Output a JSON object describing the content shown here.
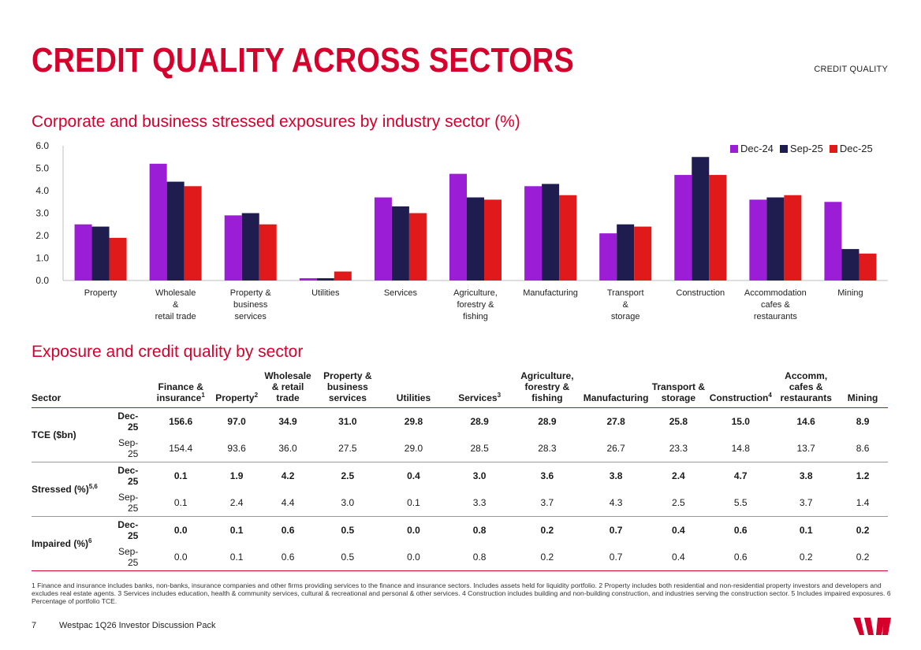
{
  "header": {
    "title": "CREDIT QUALITY ACROSS SECTORS",
    "section_tag": "CREDIT QUALITY"
  },
  "brand": {
    "accent": "#d5002b",
    "logo_name": "Westpac"
  },
  "chart_data": {
    "type": "bar",
    "title": "Corporate and business stressed exposures by industry sector (%)",
    "categories": [
      "Property",
      "Wholesale\n&\nretail trade",
      "Property &\nbusiness\nservices",
      "Utilities",
      "Services",
      "Agriculture,\nforestry &\nfishing",
      "Manufacturing",
      "Transport\n&\nstorage",
      "Construction",
      "Accommodation\ncafes &\nrestaurants",
      "Mining"
    ],
    "series": [
      {
        "name": "Dec-24",
        "color": "#9b1ed6",
        "values": [
          2.5,
          5.2,
          2.9,
          0.1,
          3.7,
          4.75,
          4.2,
          2.1,
          4.7,
          3.6,
          3.5
        ]
      },
      {
        "name": "Sep-25",
        "color": "#1f1c4f",
        "values": [
          2.4,
          4.4,
          3.0,
          0.1,
          3.3,
          3.7,
          4.3,
          2.5,
          5.5,
          3.7,
          1.4
        ]
      },
      {
        "name": "Dec-25",
        "color": "#e01a1a",
        "values": [
          1.9,
          4.2,
          2.5,
          0.4,
          3.0,
          3.6,
          3.8,
          2.4,
          4.7,
          3.8,
          1.2
        ]
      }
    ],
    "y_ticks": [
      "0.0",
      "1.0",
      "2.0",
      "3.0",
      "4.0",
      "5.0",
      "6.0"
    ],
    "ylim": [
      0,
      6
    ],
    "xlabel": "",
    "ylabel": "",
    "legend_position": "top-right",
    "grid": false
  },
  "table": {
    "title": "Exposure and credit quality by sector",
    "headers": [
      {
        "text": "Sector",
        "sup": ""
      },
      {
        "text": "",
        "sup": ""
      },
      {
        "text": "Finance &\ninsurance",
        "sup": "1"
      },
      {
        "text": "Property",
        "sup": "2"
      },
      {
        "text": "Wholesale\n& retail\ntrade",
        "sup": ""
      },
      {
        "text": "Property &\nbusiness\nservices",
        "sup": ""
      },
      {
        "text": "Utilities",
        "sup": ""
      },
      {
        "text": "Services",
        "sup": "3"
      },
      {
        "text": "Agriculture,\nforestry &\nfishing",
        "sup": ""
      },
      {
        "text": "Manufacturing",
        "sup": ""
      },
      {
        "text": "Transport &\nstorage",
        "sup": ""
      },
      {
        "text": "Construction",
        "sup": "4"
      },
      {
        "text": "Accomm,\ncafes &\nrestaurants",
        "sup": ""
      },
      {
        "text": "Mining",
        "sup": ""
      }
    ],
    "groups": [
      {
        "label": "TCE ($bn)",
        "sup": "",
        "rows": [
          {
            "period": "Dec-25",
            "values": [
              "156.6",
              "97.0",
              "34.9",
              "31.0",
              "29.8",
              "28.9",
              "28.9",
              "27.8",
              "25.8",
              "15.0",
              "14.6",
              "8.9"
            ]
          },
          {
            "period": "Sep-25",
            "values": [
              "154.4",
              "93.6",
              "36.0",
              "27.5",
              "29.0",
              "28.5",
              "28.3",
              "26.7",
              "23.3",
              "14.8",
              "13.7",
              "8.6"
            ]
          }
        ]
      },
      {
        "label": "Stressed (%)",
        "sup": "5,6",
        "rows": [
          {
            "period": "Dec-25",
            "values": [
              "0.1",
              "1.9",
              "4.2",
              "2.5",
              "0.4",
              "3.0",
              "3.6",
              "3.8",
              "2.4",
              "4.7",
              "3.8",
              "1.2"
            ]
          },
          {
            "period": "Sep-25",
            "values": [
              "0.1",
              "2.4",
              "4.4",
              "3.0",
              "0.1",
              "3.3",
              "3.7",
              "4.3",
              "2.5",
              "5.5",
              "3.7",
              "1.4"
            ]
          }
        ]
      },
      {
        "label": "Impaired (%)",
        "sup": "6",
        "rows": [
          {
            "period": "Dec-25",
            "values": [
              "0.0",
              "0.1",
              "0.6",
              "0.5",
              "0.0",
              "0.8",
              "0.2",
              "0.7",
              "0.4",
              "0.6",
              "0.1",
              "0.2"
            ]
          },
          {
            "period": "Sep-25",
            "values": [
              "0.0",
              "0.1",
              "0.6",
              "0.5",
              "0.0",
              "0.8",
              "0.2",
              "0.7",
              "0.4",
              "0.6",
              "0.2",
              "0.2"
            ]
          }
        ]
      }
    ]
  },
  "footnotes": "1 Finance and insurance includes banks, non-banks, insurance companies and other firms providing services to the finance and insurance sectors. Includes assets held for liquidity portfolio. 2 Property includes both residential and non-residential property investors and developers and excludes real estate agents. 3 Services includes education, health & community services, cultural & recreational and personal & other services. 4 Construction includes building and non-building construction, and industries serving the construction sector. 5 Includes impaired exposures. 6 Percentage of portfolio TCE.",
  "footer": {
    "page_number": "7",
    "doc_title": "Westpac 1Q26 Investor Discussion Pack"
  }
}
